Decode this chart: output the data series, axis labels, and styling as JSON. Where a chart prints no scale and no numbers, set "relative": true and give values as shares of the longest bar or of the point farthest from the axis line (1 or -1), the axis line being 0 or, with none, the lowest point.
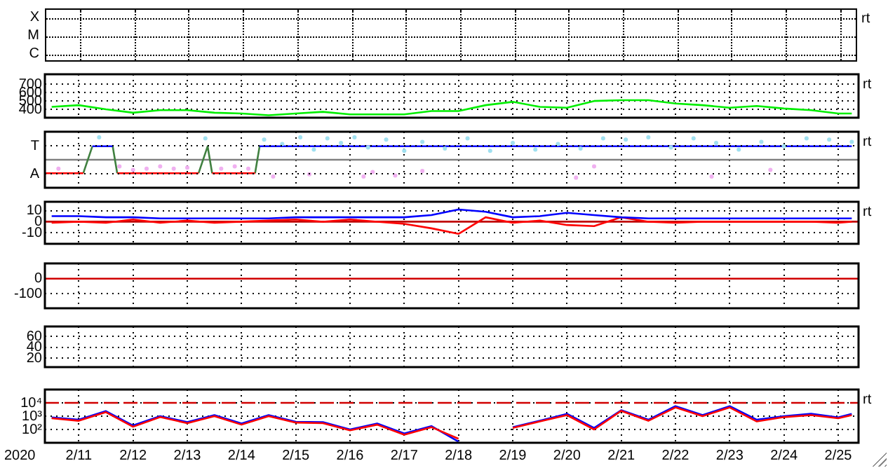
{
  "chart_data": [
    {
      "type": "other",
      "annotations": [
        "rt",
        "X",
        "M",
        "C"
      ]
    },
    {
      "type": "line",
      "ylim": [
        300,
        820
      ],
      "yticks": [
        400,
        500,
        600,
        700
      ],
      "xlim": [
        "2020-02-10T09:00",
        "2020-02-25T09:00"
      ],
      "xticks": [
        {
          "value": "2020-02-11",
          "label": null
        },
        {
          "value": "2020-02-12",
          "label": null
        },
        {
          "value": "2020-02-13",
          "label": null
        },
        {
          "value": "2020-02-14",
          "label": null
        },
        {
          "value": "2020-02-15",
          "label": null
        },
        {
          "value": "2020-02-16",
          "label": null
        },
        {
          "value": "2020-02-17",
          "label": null
        },
        {
          "value": "2020-02-18",
          "label": null
        },
        {
          "value": "2020-02-19",
          "label": null
        },
        {
          "value": "2020-02-20",
          "label": null
        },
        {
          "value": "2020-02-21",
          "label": null
        },
        {
          "value": "2020-02-22",
          "label": null
        },
        {
          "value": "2020-02-23",
          "label": null
        },
        {
          "value": "2020-02-24",
          "label": null
        },
        {
          "value": "2020-02-25",
          "label": null
        }
      ],
      "tick_labels": "y",
      "grid": true,
      "marker": "none",
      "annotations": [
        "rt"
      ],
      "x": [
        "2020-02-10T12:00",
        "2020-02-11T00:00",
        "2020-02-11T12:00",
        "2020-02-12T00:00",
        "2020-02-12T12:00",
        "2020-02-13T00:00",
        "2020-02-13T12:00",
        "2020-02-14T00:00",
        "2020-02-14T12:00",
        "2020-02-15T00:00",
        "2020-02-15T12:00",
        "2020-02-16T00:00",
        "2020-02-16T12:00",
        "2020-02-17T00:00",
        "2020-02-17T12:00",
        "2020-02-18T00:00",
        "2020-02-18T12:00",
        "2020-02-19T00:00",
        "2020-02-19T12:00",
        "2020-02-20T00:00",
        "2020-02-20T12:00",
        "2020-02-21T00:00",
        "2020-02-21T12:00",
        "2020-02-22T00:00",
        "2020-02-22T12:00",
        "2020-02-23T00:00",
        "2020-02-23T12:00",
        "2020-02-24T00:00",
        "2020-02-24T12:00",
        "2020-02-25T00:00",
        "2020-02-25T06:00"
      ],
      "series": [
        {
          "color": "#00ee00",
          "values": [
            430,
            450,
            400,
            360,
            390,
            390,
            360,
            350,
            330,
            350,
            370,
            340,
            340,
            340,
            380,
            380,
            450,
            490,
            430,
            420,
            500,
            510,
            510,
            470,
            450,
            420,
            440,
            410,
            390,
            350,
            350
          ]
        }
      ]
    },
    {
      "type": "line",
      "relative": true,
      "xlim": [
        "2020-02-10T09:00",
        "2020-02-25T09:00"
      ],
      "xticks": [
        {
          "value": "2020-02-11",
          "label": null
        },
        {
          "value": "2020-02-12",
          "label": null
        },
        {
          "value": "2020-02-13",
          "label": null
        },
        {
          "value": "2020-02-14",
          "label": null
        },
        {
          "value": "2020-02-15",
          "label": null
        },
        {
          "value": "2020-02-16",
          "label": null
        },
        {
          "value": "2020-02-17",
          "label": null
        },
        {
          "value": "2020-02-18",
          "label": null
        },
        {
          "value": "2020-02-19",
          "label": null
        },
        {
          "value": "2020-02-20",
          "label": null
        },
        {
          "value": "2020-02-21",
          "label": null
        },
        {
          "value": "2020-02-22",
          "label": null
        },
        {
          "value": "2020-02-23",
          "label": null
        },
        {
          "value": "2020-02-24",
          "label": null
        },
        {
          "value": "2020-02-25",
          "label": null
        }
      ],
      "tick_labels": false,
      "grid": true,
      "annotations": [
        "rt",
        "T",
        "A"
      ],
      "series": [
        {
          "type": "scatter",
          "marker": "circle",
          "color": "#f0b0f0",
          "x": [
            "2020-02-10T15:00",
            "2020-02-11T18:00",
            "2020-02-12T00:00",
            "2020-02-12T06:00",
            "2020-02-12T12:00",
            "2020-02-12T18:00",
            "2020-02-13T00:00",
            "2020-02-13T15:00",
            "2020-02-13T21:00",
            "2020-02-14T03:00",
            "2020-02-14T14:00",
            "2020-02-15T06:00",
            "2020-02-16T06:00",
            "2020-02-16T10:00",
            "2020-02-16T20:00",
            "2020-02-17T08:00",
            "2020-02-20T04:00",
            "2020-02-20T12:00",
            "2020-02-22T16:00",
            "2020-02-23T18:00"
          ],
          "values": [
            -0.4,
            -0.3,
            -0.45,
            -0.4,
            -0.3,
            -0.4,
            -0.35,
            -0.4,
            -0.3,
            -0.4,
            -0.75,
            -0.65,
            -0.75,
            -0.55,
            -0.7,
            -0.5,
            -0.8,
            -0.3,
            -0.75,
            -0.45
          ]
        },
        {
          "type": "scatter",
          "marker": "circle",
          "color": "#a0e0f0",
          "x": [
            "2020-02-11T09:00",
            "2020-02-13T08:00",
            "2020-02-14T10:00",
            "2020-02-14T18:00",
            "2020-02-15T02:00",
            "2020-02-15T08:00",
            "2020-02-15T14:00",
            "2020-02-15T20:00",
            "2020-02-16T02:00",
            "2020-02-16T08:00",
            "2020-02-16T16:00",
            "2020-02-17T00:00",
            "2020-02-17T08:00",
            "2020-02-17T18:00",
            "2020-02-18T04:00",
            "2020-02-18T14:00",
            "2020-02-19T00:00",
            "2020-02-19T10:00",
            "2020-02-19T20:00",
            "2020-02-20T06:00",
            "2020-02-20T16:00",
            "2020-02-21T02:00",
            "2020-02-21T12:00",
            "2020-02-21T22:00",
            "2020-02-22T08:00",
            "2020-02-22T18:00",
            "2020-02-23T04:00",
            "2020-02-23T14:00",
            "2020-02-24T00:00",
            "2020-02-24T10:00",
            "2020-02-24T20:00",
            "2020-02-25T06:00"
          ],
          "values": [
            1,
            0.95,
            0.9,
            0.7,
            1,
            0.45,
            0.95,
            0.75,
            1,
            0.55,
            0.9,
            0.4,
            0.8,
            0.5,
            0.95,
            0.4,
            0.75,
            0.45,
            0.7,
            0.5,
            0.95,
            0.9,
            1,
            0.55,
            0.95,
            0.75,
            0.45,
            0.8,
            0.6,
            0.95,
            0.9,
            0.8
          ]
        },
        {
          "type": "line",
          "marker": "none",
          "color": "#ff0000",
          "x": [
            "2020-02-10T09:00",
            "2020-02-11T02:00",
            "2020-02-11T10:00",
            "2020-02-11T17:00",
            "2020-02-13T05:00",
            "2020-02-13T08:00",
            "2020-02-13T11:00",
            "2020-02-14T06:00"
          ],
          "values": [
            -0.6,
            -0.6,
            null,
            -0.6,
            -0.6,
            null,
            -0.6,
            -0.6
          ]
        },
        {
          "type": "line",
          "marker": "none",
          "color": "#0000ff",
          "x": [
            "2020-02-11T06:00",
            "2020-02-11T15:00",
            "2020-02-13T00:00",
            "2020-02-14T08:00",
            "2020-02-25T06:00"
          ],
          "values": [
            0.6,
            0.6,
            null,
            0.6,
            0.6
          ]
        },
        {
          "type": "line",
          "marker": "none",
          "color": "#408040",
          "x": [
            "2020-02-11T02:00",
            "2020-02-11T06:00",
            "2020-02-11T10:00",
            "2020-02-11T15:00",
            "2020-02-11T17:00",
            "2020-02-12T12:00",
            "2020-02-13T05:00",
            "2020-02-13T09:00",
            "2020-02-13T11:00",
            "2020-02-13T20:00",
            "2020-02-14T06:00",
            "2020-02-14T08:00"
          ],
          "values": [
            -0.6,
            0.6,
            null,
            0.6,
            -0.6,
            null,
            -0.6,
            0.6,
            -0.6,
            null,
            -0.6,
            0.6
          ]
        }
      ]
    },
    {
      "type": "line",
      "ylim": [
        -20,
        18
      ],
      "yticks": [
        10,
        0,
        -10
      ],
      "xlim": [
        "2020-02-10T09:00",
        "2020-02-25T09:00"
      ],
      "xticks": [
        {
          "value": "2020-02-11",
          "label": null
        },
        {
          "value": "2020-02-12",
          "label": null
        },
        {
          "value": "2020-02-13",
          "label": null
        },
        {
          "value": "2020-02-14",
          "label": null
        },
        {
          "value": "2020-02-15",
          "label": null
        },
        {
          "value": "2020-02-16",
          "label": null
        },
        {
          "value": "2020-02-17",
          "label": null
        },
        {
          "value": "2020-02-18",
          "label": null
        },
        {
          "value": "2020-02-19",
          "label": null
        },
        {
          "value": "2020-02-20",
          "label": null
        },
        {
          "value": "2020-02-21",
          "label": null
        },
        {
          "value": "2020-02-22",
          "label": null
        },
        {
          "value": "2020-02-23",
          "label": null
        },
        {
          "value": "2020-02-24",
          "label": null
        },
        {
          "value": "2020-02-25",
          "label": null
        }
      ],
      "tick_labels": "y",
      "grid": true,
      "marker": "none",
      "annotations": [
        "rt"
      ],
      "ref_lines": [
        {
          "axis": "y",
          "value": 0,
          "color": "#c00000"
        }
      ],
      "x": [
        "2020-02-10T12:00",
        "2020-02-11T00:00",
        "2020-02-11T12:00",
        "2020-02-12T00:00",
        "2020-02-12T12:00",
        "2020-02-13T00:00",
        "2020-02-13T12:00",
        "2020-02-14T00:00",
        "2020-02-14T12:00",
        "2020-02-15T00:00",
        "2020-02-15T12:00",
        "2020-02-16T00:00",
        "2020-02-16T12:00",
        "2020-02-17T00:00",
        "2020-02-17T12:00",
        "2020-02-18T00:00",
        "2020-02-18T12:00",
        "2020-02-19T00:00",
        "2020-02-19T12:00",
        "2020-02-20T00:00",
        "2020-02-20T12:00",
        "2020-02-21T00:00",
        "2020-02-21T12:00",
        "2020-02-22T00:00",
        "2020-02-22T12:00",
        "2020-02-23T00:00",
        "2020-02-23T12:00",
        "2020-02-24T00:00",
        "2020-02-24T12:00",
        "2020-02-25T00:00",
        "2020-02-25T06:00"
      ],
      "series": [
        {
          "color": "#0000ff",
          "values": [
            5,
            5,
            4,
            4,
            3,
            3,
            3,
            3,
            3,
            4,
            4,
            4,
            4,
            4,
            6,
            11,
            9,
            4,
            5,
            8,
            6,
            4,
            3,
            3,
            3,
            3,
            3,
            3,
            3,
            3,
            3
          ]
        },
        {
          "color": "#ff0000",
          "values": [
            -1,
            0,
            -1,
            2,
            -1,
            1,
            -1,
            0,
            1,
            2,
            0,
            2,
            0,
            -2,
            -6,
            -11,
            4,
            -1,
            1,
            -3,
            -4,
            4,
            0,
            -1,
            0,
            0,
            0,
            0,
            0,
            -1,
            0
          ]
        }
      ]
    },
    {
      "type": "line",
      "ylim": [
        -195,
        100
      ],
      "yticks": [
        0,
        -100
      ],
      "xlim": [
        "2020-02-10T09:00",
        "2020-02-25T09:00"
      ],
      "xticks": [
        {
          "value": "2020-02-11",
          "label": null
        },
        {
          "value": "2020-02-12",
          "label": null
        },
        {
          "value": "2020-02-13",
          "label": null
        },
        {
          "value": "2020-02-14",
          "label": null
        },
        {
          "value": "2020-02-15",
          "label": null
        },
        {
          "value": "2020-02-16",
          "label": null
        },
        {
          "value": "2020-02-17",
          "label": null
        },
        {
          "value": "2020-02-18",
          "label": null
        },
        {
          "value": "2020-02-19",
          "label": null
        },
        {
          "value": "2020-02-20",
          "label": null
        },
        {
          "value": "2020-02-21",
          "label": null
        },
        {
          "value": "2020-02-22",
          "label": null
        },
        {
          "value": "2020-02-23",
          "label": null
        },
        {
          "value": "2020-02-24",
          "label": null
        },
        {
          "value": "2020-02-25",
          "label": null
        }
      ],
      "tick_labels": "y",
      "grid": true,
      "ref_lines": [
        {
          "axis": "y",
          "value": 0,
          "color": "#d00000"
        }
      ]
    },
    {
      "type": "line",
      "ylim": [
        4,
        78
      ],
      "yticks": [
        60,
        40,
        20
      ],
      "xlim": [
        "2020-02-10T09:00",
        "2020-02-25T09:00"
      ],
      "xticks": [
        {
          "value": "2020-02-11",
          "label": null
        },
        {
          "value": "2020-02-12",
          "label": null
        },
        {
          "value": "2020-02-13",
          "label": null
        },
        {
          "value": "2020-02-14",
          "label": null
        },
        {
          "value": "2020-02-15",
          "label": null
        },
        {
          "value": "2020-02-16",
          "label": null
        },
        {
          "value": "2020-02-17",
          "label": null
        },
        {
          "value": "2020-02-18",
          "label": null
        },
        {
          "value": "2020-02-19",
          "label": null
        },
        {
          "value": "2020-02-20",
          "label": null
        },
        {
          "value": "2020-02-21",
          "label": null
        },
        {
          "value": "2020-02-22",
          "label": null
        },
        {
          "value": "2020-02-23",
          "label": null
        },
        {
          "value": "2020-02-24",
          "label": null
        },
        {
          "value": "2020-02-25",
          "label": null
        }
      ],
      "tick_labels": "y",
      "grid": true
    },
    {
      "type": "line",
      "log": "y",
      "ylim": [
        10,
        100000
      ],
      "yticks": [
        {
          "value": 10000,
          "label": "10⁴"
        },
        {
          "value": 1000,
          "label": "10³"
        },
        {
          "value": 100,
          "label": "10²"
        }
      ],
      "xlim": [
        "2020-02-10T09:00",
        "2020-02-25T09:00"
      ],
      "xticks": [
        {
          "value": "2020-02-11",
          "label": "2/11"
        },
        {
          "value": "2020-02-12",
          "label": "2/12"
        },
        {
          "value": "2020-02-13",
          "label": "2/13"
        },
        {
          "value": "2020-02-14",
          "label": "2/14"
        },
        {
          "value": "2020-02-15",
          "label": "2/15"
        },
        {
          "value": "2020-02-16",
          "label": "2/16"
        },
        {
          "value": "2020-02-17",
          "label": "2/17"
        },
        {
          "value": "2020-02-18",
          "label": "2/18"
        },
        {
          "value": "2020-02-19",
          "label": "2/19"
        },
        {
          "value": "2020-02-20",
          "label": "2/20"
        },
        {
          "value": "2020-02-21",
          "label": "2/21"
        },
        {
          "value": "2020-02-22",
          "label": "2/22"
        },
        {
          "value": "2020-02-23",
          "label": "2/23"
        },
        {
          "value": "2020-02-24",
          "label": "2/24"
        },
        {
          "value": "2020-02-25",
          "label": "2/25"
        }
      ],
      "grid": true,
      "marker": "none",
      "xlabel": "2020",
      "annotations": [
        "rt"
      ],
      "ref_lines": [
        {
          "axis": "y",
          "value": 10000,
          "color": "#d00000",
          "line_style": "dashed"
        }
      ],
      "x": [
        "2020-02-10T12:00",
        "2020-02-11T00:00",
        "2020-02-11T12:00",
        "2020-02-12T00:00",
        "2020-02-12T12:00",
        "2020-02-13T00:00",
        "2020-02-13T12:00",
        "2020-02-14T00:00",
        "2020-02-14T12:00",
        "2020-02-15T00:00",
        "2020-02-15T12:00",
        "2020-02-16T00:00",
        "2020-02-16T12:00",
        "2020-02-17T00:00",
        "2020-02-17T12:00",
        "2020-02-18T00:00",
        "2020-02-18T12:00",
        "2020-02-19T00:00",
        "2020-02-19T12:00",
        "2020-02-20T00:00",
        "2020-02-20T12:00",
        "2020-02-21T00:00",
        "2020-02-21T12:00",
        "2020-02-22T00:00",
        "2020-02-22T12:00",
        "2020-02-23T00:00",
        "2020-02-23T12:00",
        "2020-02-24T00:00",
        "2020-02-24T12:00",
        "2020-02-25T00:00",
        "2020-02-25T06:00"
      ],
      "series": [
        {
          "color": "#ff0000",
          "values": [
            700,
            450,
            2000,
            160,
            850,
            300,
            1000,
            230,
            1000,
            330,
            300,
            85,
            230,
            40,
            150,
            20,
            null,
            130,
            400,
            1200,
            100,
            2500,
            450,
            4500,
            1000,
            4500,
            400,
            850,
            1200,
            700,
            1200
          ]
        },
        {
          "color": "#0000ff",
          "values": [
            800,
            540,
            2400,
            200,
            1000,
            360,
            1200,
            280,
            1200,
            380,
            360,
            100,
            280,
            50,
            180,
            12,
            null,
            150,
            450,
            1500,
            130,
            2800,
            540,
            5600,
            1200,
            5600,
            540,
            1000,
            1500,
            800,
            1500
          ]
        }
      ]
    }
  ]
}
